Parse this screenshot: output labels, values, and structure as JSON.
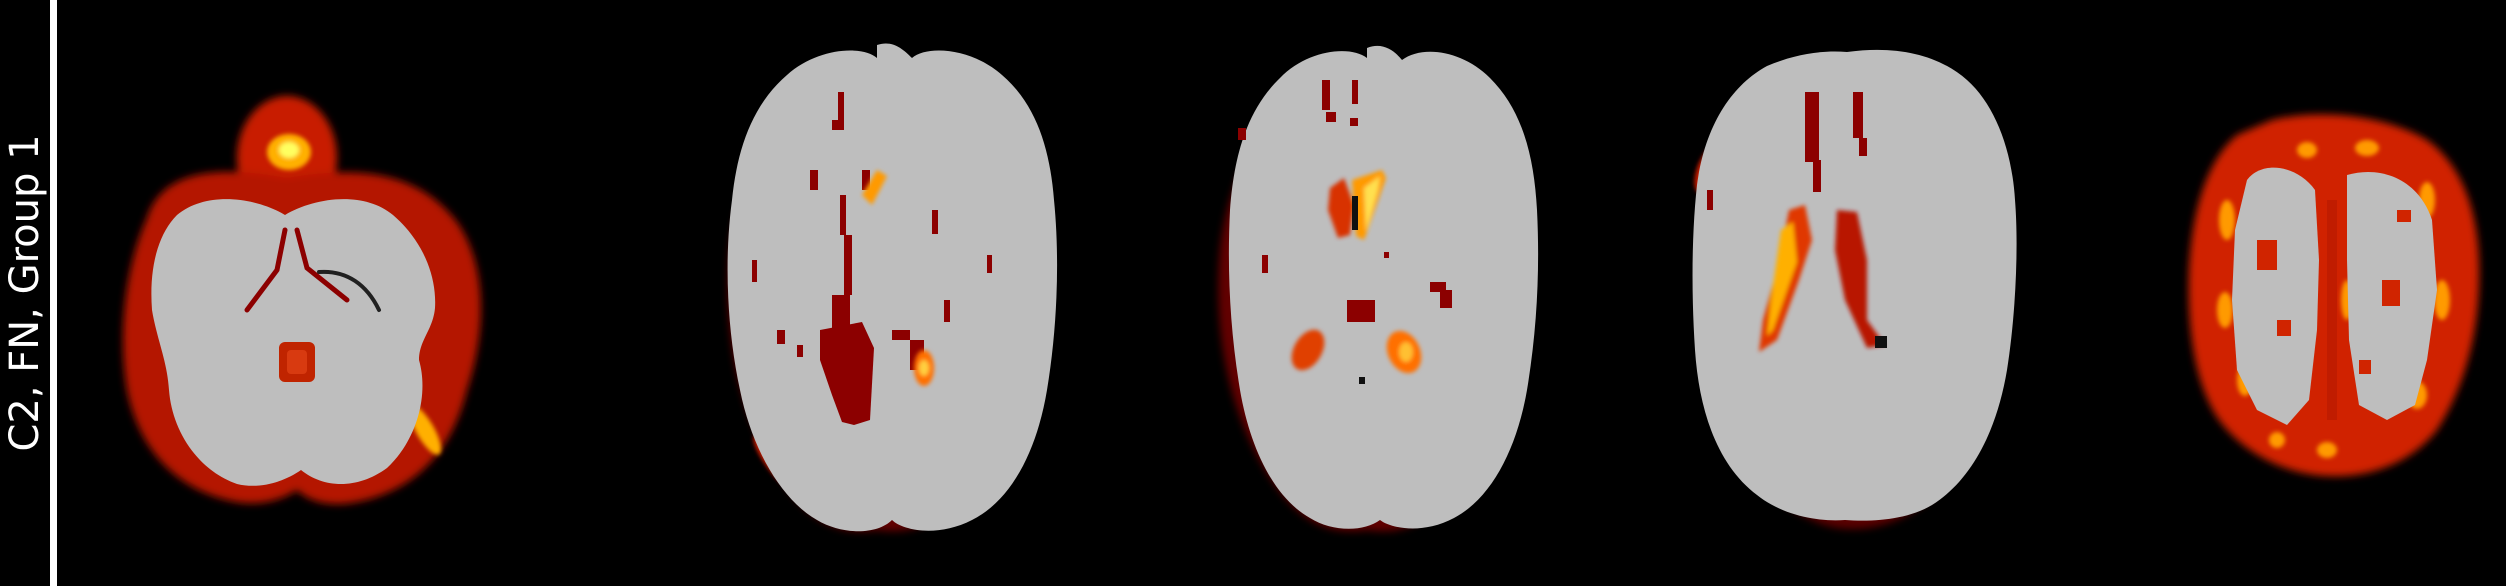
{
  "figure": {
    "row_label": "C2, FN, Group 1",
    "slice_count": 5
  },
  "colors": {
    "background": "#000000",
    "divider": "#ffffff",
    "brain_tissue": "#bebebe",
    "heat_dark": "#8c0000",
    "heat_mid": "#e62a00",
    "heat_high": "#ff9a00",
    "heat_peak": "#ffff40"
  }
}
